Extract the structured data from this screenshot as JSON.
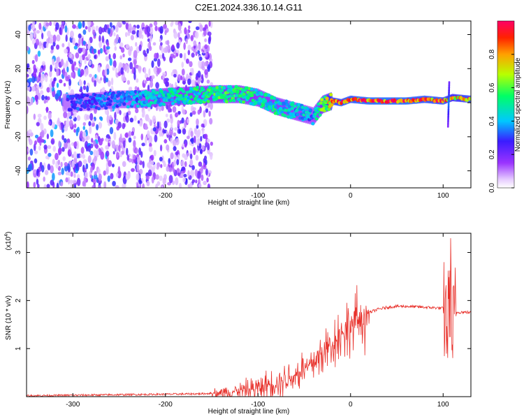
{
  "figure": {
    "title": "C2E1.2024.336.10.14.G11"
  },
  "chart_data": [
    {
      "type": "heatmap",
      "title": "C2E1.2024.336.10.14.G11",
      "xlabel": "Height of straight line (km)",
      "ylabel": "Frequency (Hz)",
      "xlim": [
        -350,
        130
      ],
      "ylim": [
        -50,
        48
      ],
      "x_ticks": [
        -300,
        -200,
        -100,
        0,
        100
      ],
      "y_ticks": [
        -40,
        -20,
        0,
        20,
        40
      ],
      "colorbar": {
        "label": "Normalized spectral amplitude",
        "range": [
          0,
          1
        ],
        "ticks": [
          "0.0",
          "0.2",
          "0.4",
          "0.6",
          "0.8"
        ],
        "colormap": "rainbow (white → purple → blue → cyan → green → yellow → red)"
      },
      "ridge": {
        "x": [
          -300,
          -270,
          -250,
          -230,
          -210,
          -180,
          -150,
          -120,
          -100,
          -80,
          -60,
          -40,
          -30,
          -20,
          -10,
          0,
          20,
          40,
          60,
          80,
          100,
          110,
          130
        ],
        "y": [
          0,
          1,
          2,
          2,
          3,
          4,
          5,
          5,
          3,
          -2,
          -5,
          -8,
          -1,
          1,
          0,
          2,
          1,
          1,
          1,
          2,
          1,
          3,
          2
        ],
        "amplitude": [
          0.3,
          0.35,
          0.35,
          0.4,
          0.45,
          0.5,
          0.55,
          0.55,
          0.5,
          0.5,
          0.45,
          0.4,
          0.6,
          0.85,
          0.9,
          0.9,
          0.95,
          0.95,
          0.95,
          0.9,
          0.9,
          0.8,
          0.9
        ]
      },
      "noise_extent_x": [
        -350,
        -150
      ]
    },
    {
      "type": "line",
      "xlabel": "Height of straight line (km)",
      "ylabel": "SNR (10 * v/v)",
      "y_multiplier": "(x10^4)",
      "y_multiplier_base": "(x10",
      "y_multiplier_exp": "4",
      "y_multiplier_close": ")",
      "xlim": [
        -350,
        130
      ],
      "ylim": [
        0,
        3.4
      ],
      "x_ticks": [
        -300,
        -200,
        -100,
        0,
        100
      ],
      "y_ticks": [
        1,
        2,
        3
      ],
      "color": "#e8312b",
      "series": [
        {
          "x": [
            -350,
            -300,
            -250,
            -200,
            -160,
            -140,
            -120,
            -100,
            -80,
            -60,
            -40,
            -30,
            -20,
            -10,
            0,
            10,
            20,
            30,
            40,
            50,
            60,
            70,
            80,
            90,
            100,
            105,
            108,
            110,
            113,
            120,
            130
          ],
          "values": [
            0.02,
            0.03,
            0.04,
            0.05,
            0.06,
            0.08,
            0.12,
            0.18,
            0.3,
            0.45,
            0.7,
            0.9,
            1.1,
            1.3,
            1.45,
            1.6,
            1.75,
            1.82,
            1.86,
            1.88,
            1.88,
            1.87,
            1.86,
            1.85,
            1.84,
            1.5,
            2.4,
            1.2,
            1.75,
            1.76,
            1.75
          ]
        }
      ]
    }
  ]
}
